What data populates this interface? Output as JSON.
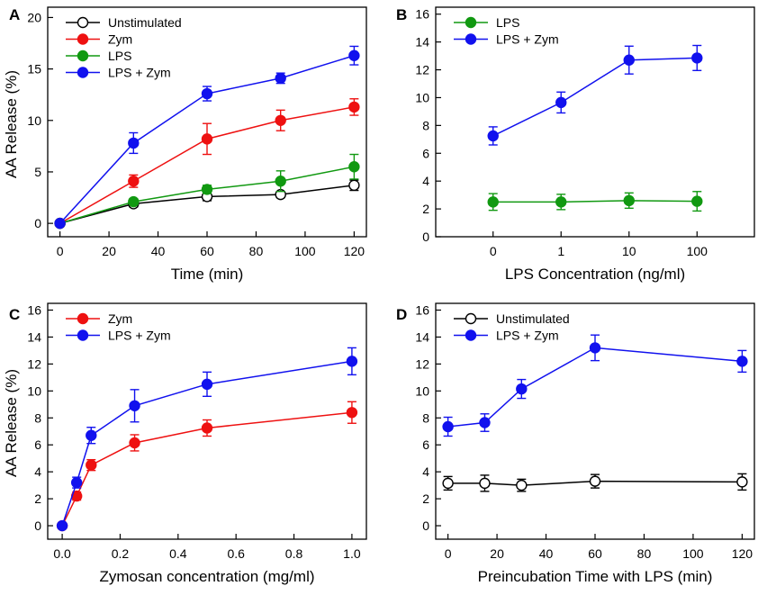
{
  "chart_data": [
    {
      "type": "line",
      "panel": "A",
      "xlabel": "Time (min)",
      "ylabel": "AA Release (%)",
      "xlim": [
        -5,
        125
      ],
      "ylim": [
        -1.3,
        21
      ],
      "xticks": [
        0,
        20,
        40,
        60,
        80,
        100,
        120
      ],
      "yticks": [
        0,
        5,
        10,
        15,
        20
      ],
      "x": [
        0,
        30,
        60,
        90,
        120
      ],
      "legend_position": "top-left",
      "series": [
        {
          "name": "Unstimulated",
          "color": "#000000",
          "fill": "#ffffff",
          "values": [
            0,
            1.9,
            2.6,
            2.8,
            3.7
          ],
          "errors": [
            0.2,
            0.3,
            0.4,
            0.3,
            0.5
          ]
        },
        {
          "name": "Zym",
          "color": "#ee1111",
          "fill": "#ee1111",
          "values": [
            0,
            4.1,
            8.2,
            10.0,
            11.3
          ],
          "errors": [
            0.2,
            0.6,
            1.5,
            1.0,
            0.8
          ]
        },
        {
          "name": "LPS",
          "color": "#119911",
          "fill": "#119911",
          "values": [
            0,
            2.1,
            3.3,
            4.1,
            5.5
          ],
          "errors": [
            0.2,
            0.3,
            0.4,
            1.0,
            1.2
          ]
        },
        {
          "name": "LPS + Zym",
          "color": "#1111ee",
          "fill": "#1111ee",
          "values": [
            0,
            7.8,
            12.6,
            14.1,
            16.3
          ],
          "errors": [
            0.2,
            1.0,
            0.7,
            0.5,
            0.9
          ]
        }
      ]
    },
    {
      "type": "line",
      "panel": "B",
      "xlabel": "LPS Concentration (ng/ml)",
      "ylabel": "",
      "categories": [
        "0",
        "1",
        "10",
        "100"
      ],
      "ylim": [
        0,
        16.5
      ],
      "yticks": [
        0,
        2,
        4,
        6,
        8,
        10,
        12,
        14,
        16
      ],
      "legend_position": "top-left",
      "series": [
        {
          "name": "LPS",
          "color": "#119911",
          "fill": "#119911",
          "values": [
            2.5,
            2.5,
            2.6,
            2.55
          ],
          "errors": [
            0.6,
            0.55,
            0.55,
            0.7
          ]
        },
        {
          "name": "LPS + Zym",
          "color": "#1111ee",
          "fill": "#1111ee",
          "values": [
            7.25,
            9.65,
            12.7,
            12.85
          ],
          "errors": [
            0.65,
            0.75,
            1.0,
            0.9
          ]
        }
      ]
    },
    {
      "type": "line",
      "panel": "C",
      "xlabel": "Zymosan concentration (mg/ml)",
      "ylabel": "AA Release (%)",
      "xlim": [
        -0.05,
        1.05
      ],
      "ylim": [
        -1,
        16.5
      ],
      "xticks": [
        "0.0",
        "0.2",
        "0.4",
        "0.6",
        "0.8",
        "1.0"
      ],
      "yticks": [
        0,
        2,
        4,
        6,
        8,
        10,
        12,
        14,
        16
      ],
      "x": [
        0,
        0.05,
        0.1,
        0.25,
        0.5,
        1.0
      ],
      "legend_position": "top-left",
      "series": [
        {
          "name": "Zym",
          "color": "#ee1111",
          "fill": "#ee1111",
          "values": [
            0,
            2.2,
            4.5,
            6.15,
            7.25,
            8.4
          ],
          "errors": [
            0.15,
            0.3,
            0.4,
            0.6,
            0.6,
            0.8
          ]
        },
        {
          "name": "LPS + Zym",
          "color": "#1111ee",
          "fill": "#1111ee",
          "values": [
            0,
            3.2,
            6.7,
            8.9,
            10.5,
            12.2
          ],
          "errors": [
            0.15,
            0.4,
            0.6,
            1.2,
            0.9,
            1.0
          ]
        }
      ]
    },
    {
      "type": "line",
      "panel": "D",
      "xlabel": "Preincubation Time with LPS (min)",
      "ylabel": "",
      "xlim": [
        -5,
        125
      ],
      "ylim": [
        -1,
        16.5
      ],
      "xticks": [
        0,
        20,
        40,
        60,
        80,
        100,
        120
      ],
      "yticks": [
        0,
        2,
        4,
        6,
        8,
        10,
        12,
        14,
        16
      ],
      "x": [
        0,
        15,
        30,
        60,
        120
      ],
      "legend_position": "top-left",
      "series": [
        {
          "name": "Unstimulated",
          "color": "#000000",
          "fill": "#ffffff",
          "values": [
            3.15,
            3.15,
            3.0,
            3.3,
            3.25
          ],
          "errors": [
            0.5,
            0.6,
            0.45,
            0.5,
            0.6
          ]
        },
        {
          "name": "LPS + Zym",
          "color": "#1111ee",
          "fill": "#1111ee",
          "values": [
            7.35,
            7.65,
            10.15,
            13.2,
            12.2
          ],
          "errors": [
            0.7,
            0.65,
            0.7,
            0.95,
            0.8
          ]
        }
      ]
    }
  ]
}
